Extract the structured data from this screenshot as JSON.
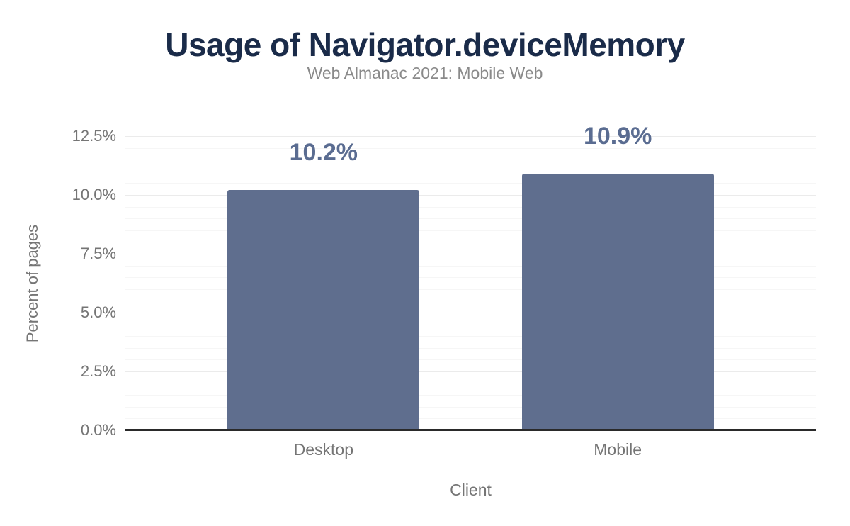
{
  "chart_data": {
    "type": "bar",
    "title": "Usage of Navigator.deviceMemory",
    "subtitle": "Web Almanac 2021: Mobile Web",
    "xlabel": "Client",
    "ylabel": "Percent of pages",
    "categories": [
      "Desktop",
      "Mobile"
    ],
    "values": [
      10.2,
      10.9
    ],
    "value_labels": [
      "10.2%",
      "10.9%"
    ],
    "ylim": [
      0,
      12.5
    ],
    "yticks": [
      0,
      2.5,
      5,
      7.5,
      10,
      12.5
    ],
    "ytick_labels": [
      "0.0%",
      "2.5%",
      "5.0%",
      "7.5%",
      "10.0%",
      "12.5%"
    ],
    "minor_tick_step": 0.5,
    "grid": "horizontal",
    "legend": "none",
    "colors": {
      "bar": "#5f6e8e",
      "value_label": "#5a6c91",
      "title": "#1a2b49",
      "subtitle": "#8a8a8a",
      "tick_label": "#757575",
      "axis_title": "#757575",
      "axis_line": "#2a2a2a",
      "grid_major": "#ebebeb",
      "grid_minor": "#f6f6f6",
      "background": "#ffffff"
    }
  }
}
